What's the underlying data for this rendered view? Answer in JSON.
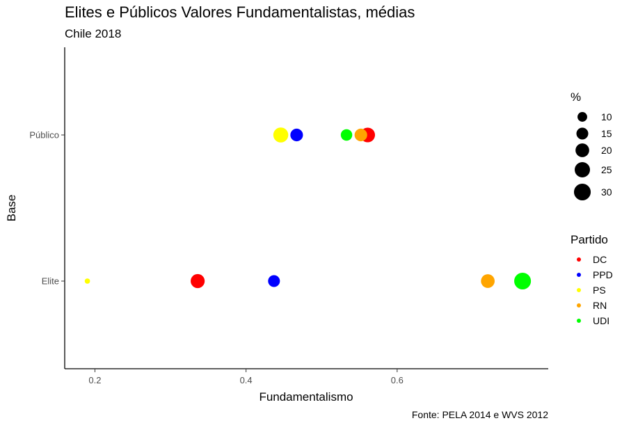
{
  "chart_data": {
    "type": "scatter",
    "title": "Elites e Públicos Valores Fundamentalistas, médias",
    "subtitle": "Chile 2018",
    "xlabel": "Fundamentalismo",
    "ylabel": "Base",
    "caption": "Fonte: PELA 2014 e WVS 2012",
    "xlim": [
      0.16,
      0.8
    ],
    "x_ticks": [
      {
        "value": 0.2,
        "label": "0.2"
      },
      {
        "value": 0.4,
        "label": "0.4"
      },
      {
        "value": 0.6,
        "label": "0.6"
      }
    ],
    "categories": [
      "Elite",
      "Público"
    ],
    "grid": false,
    "size_legend": {
      "title": "%",
      "items": [
        {
          "label": "10",
          "value": 10
        },
        {
          "label": "15",
          "value": 15
        },
        {
          "label": "20",
          "value": 20
        },
        {
          "label": "25",
          "value": 25
        },
        {
          "label": "30",
          "value": 30
        }
      ]
    },
    "color_legend": {
      "title": "Partido",
      "placement": "right",
      "items": [
        {
          "label": "DC",
          "color": "#ff0000"
        },
        {
          "label": "PPD",
          "color": "#0000ff"
        },
        {
          "label": "PS",
          "color": "#ffff00"
        },
        {
          "label": "RN",
          "color": "#ffa500"
        },
        {
          "label": "UDI",
          "color": "#00ff00"
        }
      ]
    },
    "points": [
      {
        "base": "Elite",
        "partido": "PS",
        "x": 0.19,
        "pct": 3
      },
      {
        "base": "Elite",
        "partido": "DC",
        "x": 0.336,
        "pct": 21
      },
      {
        "base": "Elite",
        "partido": "PPD",
        "x": 0.437,
        "pct": 15
      },
      {
        "base": "Elite",
        "partido": "RN",
        "x": 0.72,
        "pct": 20
      },
      {
        "base": "Elite",
        "partido": "UDI",
        "x": 0.766,
        "pct": 30
      },
      {
        "base": "Público",
        "partido": "PS",
        "x": 0.446,
        "pct": 24
      },
      {
        "base": "Público",
        "partido": "PPD",
        "x": 0.467,
        "pct": 17
      },
      {
        "base": "Público",
        "partido": "UDI",
        "x": 0.533,
        "pct": 14
      },
      {
        "base": "Público",
        "partido": "DC",
        "x": 0.561,
        "pct": 23
      },
      {
        "base": "Público",
        "partido": "RN",
        "x": 0.552,
        "pct": 17
      }
    ]
  }
}
